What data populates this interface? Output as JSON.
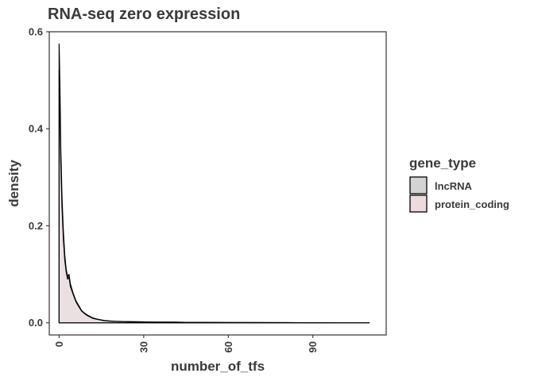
{
  "chart_data": {
    "type": "area",
    "title": "RNA-seq zero expression",
    "xlabel": "number_of_tfs",
    "ylabel": "density",
    "xlim": [
      -3.5,
      116
    ],
    "ylim": [
      -0.025,
      0.6
    ],
    "x_ticks": [
      0,
      30,
      60,
      90
    ],
    "x_tick_labels": [
      "0",
      "30",
      "60",
      "90"
    ],
    "y_ticks": [
      0.0,
      0.2,
      0.4,
      0.6
    ],
    "y_tick_labels": [
      "0.0",
      "0.2",
      "0.4",
      "0.6"
    ],
    "grid": false,
    "legend": {
      "title": "gene_type",
      "position": "right",
      "entries": [
        {
          "label": "lncRNA",
          "fill": "#d3d3d3"
        },
        {
          "label": "protein_coding",
          "fill": "#eddadd"
        }
      ]
    },
    "series": [
      {
        "name": "lncRNA",
        "fill": "#d3d3d3",
        "line": "#000000",
        "x": [
          0,
          0.3,
          0.6,
          1,
          1.5,
          2,
          2.5,
          3,
          3.5,
          4,
          5,
          6,
          7,
          8,
          9,
          10,
          12,
          14,
          16,
          18,
          20,
          25,
          30,
          35,
          40,
          45,
          50,
          60,
          70,
          80,
          90,
          100,
          110
        ],
        "y": [
          0.575,
          0.48,
          0.36,
          0.26,
          0.19,
          0.14,
          0.11,
          0.095,
          0.1,
          0.08,
          0.06,
          0.045,
          0.035,
          0.025,
          0.02,
          0.016,
          0.01,
          0.007,
          0.005,
          0.004,
          0.003,
          0.0025,
          0.002,
          0.0015,
          0.0015,
          0.001,
          0.001,
          0.0007,
          0.0005,
          0.0003,
          0.0002,
          0.0001,
          0.0
        ]
      },
      {
        "name": "protein_coding",
        "fill": "#eddadd",
        "line": "#000000",
        "x": [
          0,
          0.3,
          0.6,
          1,
          1.5,
          2,
          2.5,
          3,
          3.5,
          4,
          5,
          6,
          7,
          8,
          9,
          10,
          12,
          14,
          16,
          18,
          20,
          25,
          30,
          35,
          40,
          45,
          50,
          60,
          70,
          80,
          90,
          100,
          110
        ],
        "y": [
          0.52,
          0.43,
          0.33,
          0.24,
          0.175,
          0.13,
          0.105,
          0.09,
          0.095,
          0.075,
          0.058,
          0.043,
          0.033,
          0.024,
          0.019,
          0.015,
          0.009,
          0.0065,
          0.0045,
          0.0035,
          0.003,
          0.0022,
          0.0018,
          0.0014,
          0.0013,
          0.001,
          0.0008,
          0.0006,
          0.0004,
          0.0003,
          0.0002,
          0.0001,
          0.0
        ]
      }
    ]
  }
}
